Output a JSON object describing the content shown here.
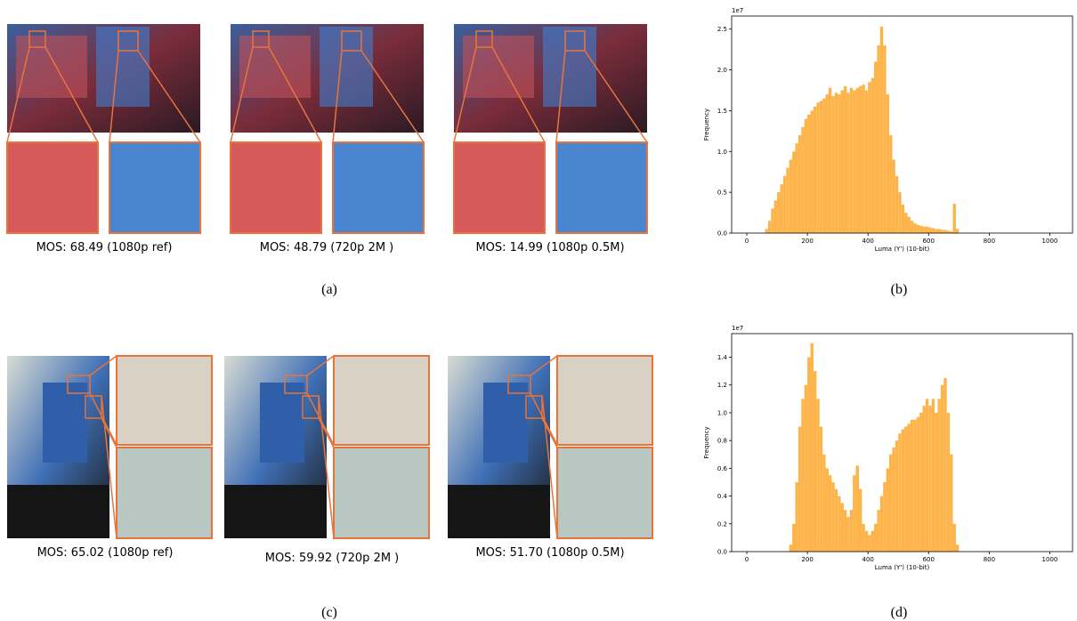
{
  "figure": {
    "top_captions": [
      "MOS: 68.49 (1080p ref)",
      "MOS: 48.79 (720p 2M )",
      "MOS: 14.99 (1080p 0.5M)"
    ],
    "bottom_captions": [
      "MOS: 65.02 (1080p ref)",
      "MOS: 59.92 (720p 2M )",
      "MOS: 51.70 (1080p 0.5M)"
    ],
    "subfigure_labels": [
      "(a)",
      "(b)",
      "(c)",
      "(d)"
    ]
  },
  "chart_data": [
    {
      "type": "histogram",
      "x_label": "Luma (Y') (10-bit)",
      "y_label": "Frequency",
      "y_offset_label": "1e7",
      "color": "#fdb44b",
      "bins": [
        60,
        70,
        80,
        90,
        100,
        110,
        120,
        130,
        140,
        150,
        160,
        170,
        180,
        190,
        200,
        210,
        220,
        230,
        240,
        250,
        260,
        270,
        280,
        290,
        300,
        310,
        320,
        330,
        340,
        350,
        360,
        370,
        380,
        390,
        400,
        410,
        420,
        430,
        440,
        450,
        460,
        470,
        480,
        490,
        500,
        510,
        520,
        530,
        540,
        550,
        560,
        570,
        580,
        590,
        600,
        610,
        620,
        630,
        640,
        650,
        660,
        670,
        680,
        690,
        700
      ],
      "values": [
        0.05,
        0.15,
        0.3,
        0.4,
        0.5,
        0.6,
        0.7,
        0.8,
        0.9,
        1.0,
        1.1,
        1.2,
        1.3,
        1.4,
        1.45,
        1.5,
        1.55,
        1.6,
        1.62,
        1.65,
        1.7,
        1.78,
        1.68,
        1.72,
        1.7,
        1.75,
        1.8,
        1.72,
        1.78,
        1.75,
        1.78,
        1.8,
        1.82,
        1.75,
        1.85,
        1.9,
        2.1,
        2.3,
        2.53,
        2.3,
        1.7,
        1.2,
        0.9,
        0.7,
        0.5,
        0.35,
        0.25,
        0.2,
        0.15,
        0.12,
        0.1,
        0.09,
        0.08,
        0.08,
        0.07,
        0.06,
        0.05,
        0.05,
        0.04,
        0.04,
        0.03,
        0.02,
        0.36,
        0.05
      ],
      "xlim": [
        -50,
        1075
      ],
      "xticks": [
        0,
        200,
        400,
        600,
        800,
        1000
      ],
      "ylim": [
        0,
        2.66
      ],
      "yticks": [
        {
          "value": 0,
          "label": "0.0"
        },
        0.5,
        {
          "value": 1,
          "label": "1.0"
        },
        1.5,
        {
          "value": 2,
          "label": "2.0"
        },
        2.5
      ]
    },
    {
      "type": "histogram",
      "x_label": "Luma (Y') (10-bit)",
      "y_label": "Frequency",
      "y_offset_label": "1e7",
      "color": "#fdb44b",
      "bins": [
        140,
        150,
        160,
        170,
        180,
        190,
        200,
        210,
        220,
        230,
        240,
        250,
        260,
        270,
        280,
        290,
        300,
        310,
        320,
        330,
        340,
        350,
        360,
        370,
        380,
        390,
        400,
        410,
        420,
        430,
        440,
        450,
        460,
        470,
        480,
        490,
        500,
        510,
        520,
        530,
        540,
        550,
        560,
        570,
        580,
        590,
        600,
        610,
        620,
        630,
        640,
        650,
        660,
        670,
        680,
        690,
        700
      ],
      "values": [
        0.05,
        0.2,
        0.5,
        0.9,
        1.1,
        1.2,
        1.4,
        1.5,
        1.3,
        1.1,
        0.9,
        0.7,
        0.6,
        0.55,
        0.5,
        0.45,
        0.4,
        0.35,
        0.3,
        0.25,
        0.3,
        0.55,
        0.62,
        0.45,
        0.2,
        0.15,
        0.12,
        0.15,
        0.2,
        0.3,
        0.4,
        0.5,
        0.6,
        0.7,
        0.75,
        0.8,
        0.85,
        0.88,
        0.9,
        0.92,
        0.95,
        0.95,
        0.97,
        1.0,
        1.05,
        1.1,
        1.05,
        1.1,
        1.0,
        1.1,
        1.2,
        1.25,
        1.0,
        0.7,
        0.2,
        0.05
      ],
      "xlim": [
        -50,
        1075
      ],
      "xticks": [
        0,
        200,
        400,
        600,
        800,
        1000
      ],
      "ylim": [
        0,
        1.57
      ],
      "yticks": [
        {
          "value": 0,
          "label": "0.0"
        },
        0.2,
        0.4,
        0.6,
        0.8,
        {
          "value": 1,
          "label": "1.0"
        },
        1.2,
        1.4
      ]
    }
  ]
}
